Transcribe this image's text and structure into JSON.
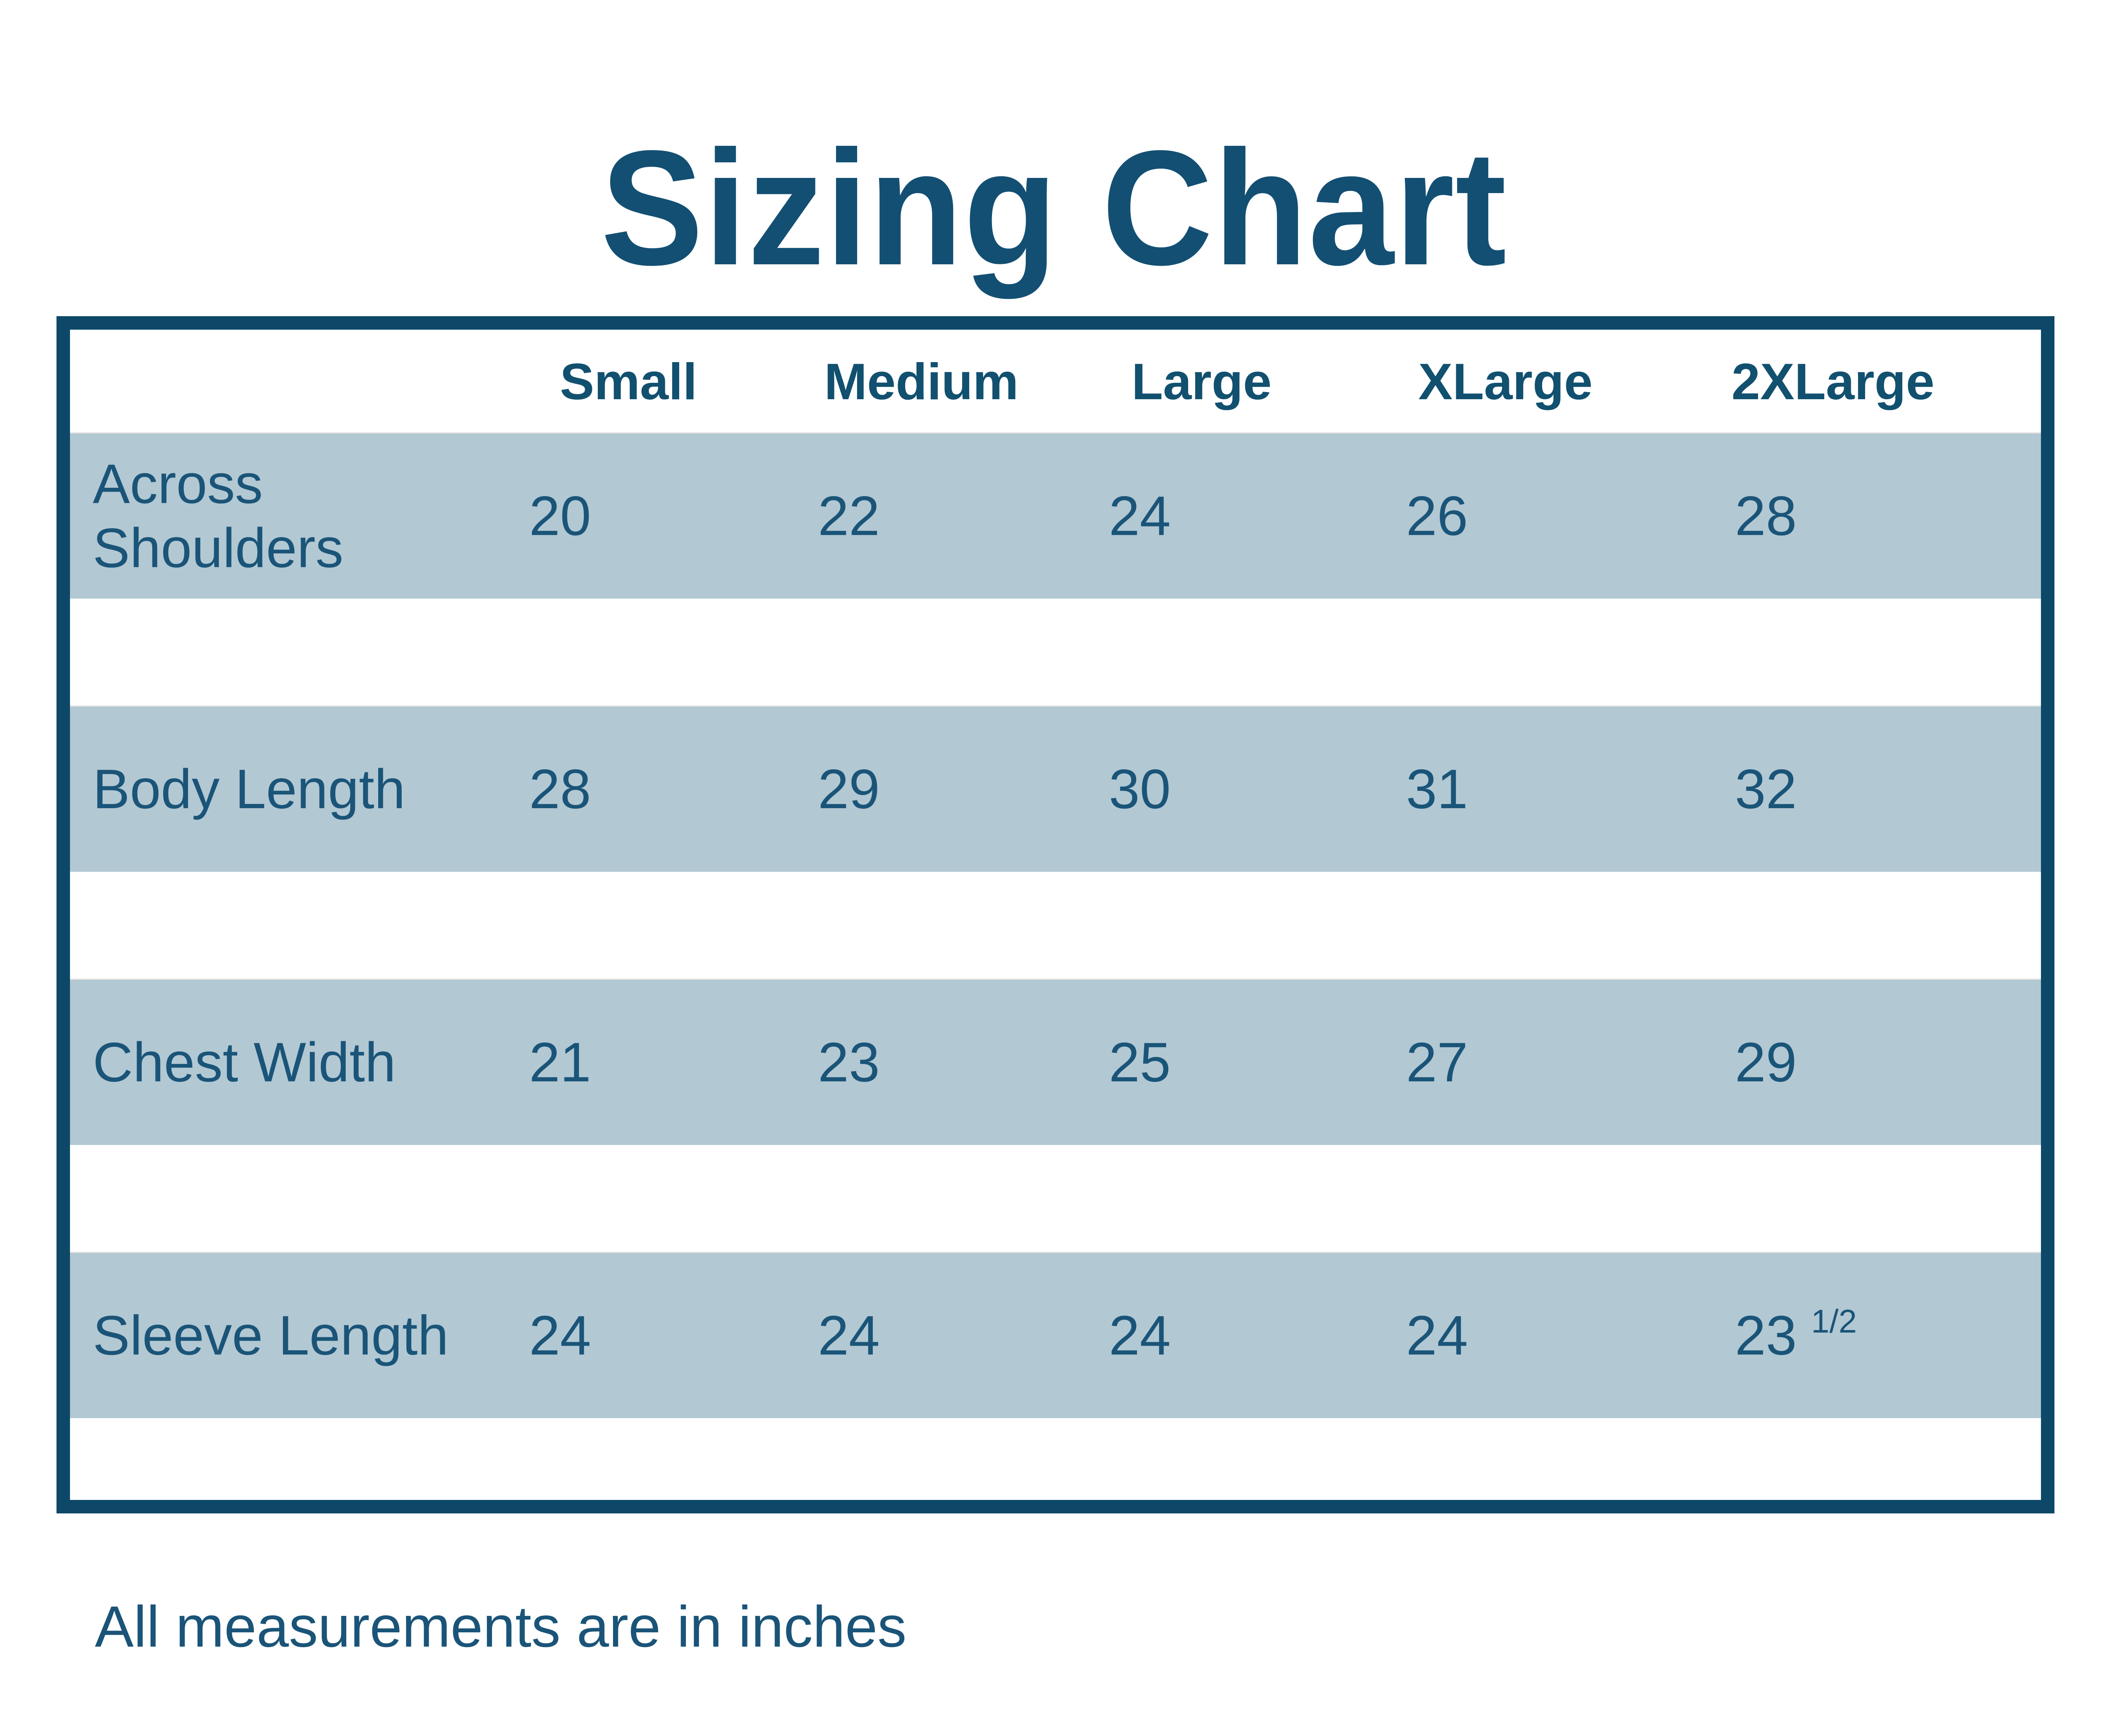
{
  "title": "Sizing Chart",
  "footer": "All measurements are in inches",
  "colors": {
    "ink": "#134f73",
    "border": "#0d4868",
    "band": "#b2c8d3",
    "background": "#ffffff"
  },
  "table": {
    "columns": [
      "Small",
      "Medium",
      "Large",
      "XLarge",
      "2XLarge"
    ],
    "rows": [
      {
        "label": "Across Shoulders",
        "values": [
          "20",
          "22",
          "24",
          "26",
          "28"
        ]
      },
      {
        "label": "Body Length",
        "values": [
          "28",
          "29",
          "30",
          "31",
          "32"
        ]
      },
      {
        "label": "Chest Width",
        "values": [
          "21",
          "23",
          "25",
          "27",
          "29"
        ]
      },
      {
        "label": "Sleeve Length",
        "values": [
          "24",
          "24",
          "24",
          "24",
          "23"
        ],
        "fraction": "1/2"
      }
    ]
  },
  "chart_data": {
    "type": "table",
    "title": "Sizing Chart",
    "columns": [
      "Small",
      "Medium",
      "Large",
      "XLarge",
      "2XLarge"
    ],
    "rows": [
      {
        "label": "Across Shoulders",
        "values": [
          20,
          22,
          24,
          26,
          28
        ]
      },
      {
        "label": "Body Length",
        "values": [
          28,
          29,
          30,
          31,
          32
        ]
      },
      {
        "label": "Chest Width",
        "values": [
          21,
          23,
          25,
          27,
          29
        ]
      },
      {
        "label": "Sleeve Length",
        "values": [
          24,
          24,
          24,
          24,
          23.5
        ]
      }
    ],
    "note": "All measurements are in inches",
    "layout": "alternating blue/white striped rows, header row of sizes, row labels at left"
  }
}
